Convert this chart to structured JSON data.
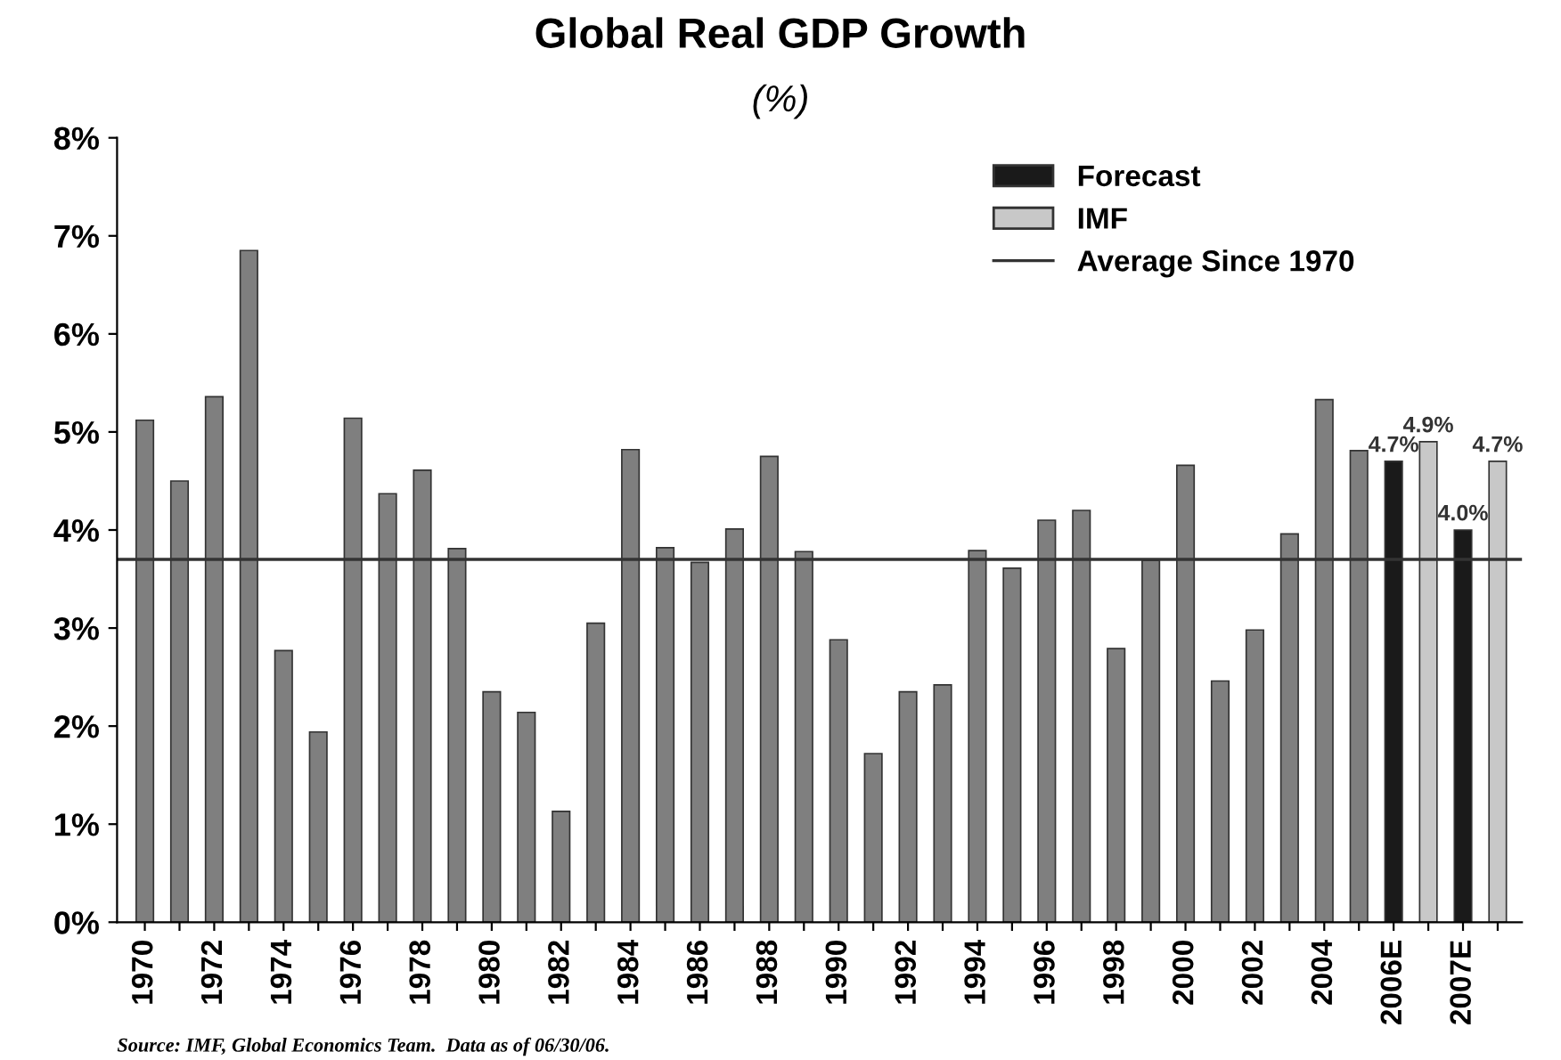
{
  "chart_data": {
    "type": "bar",
    "title": "Global Real GDP Growth",
    "subtitle": "(%)",
    "categories": [
      "1970",
      null,
      "1972",
      null,
      "1974",
      null,
      "1976",
      null,
      "1978",
      null,
      "1980",
      null,
      "1982",
      null,
      "1984",
      null,
      "1986",
      null,
      "1988",
      null,
      "1990",
      null,
      "1992",
      null,
      "1994",
      null,
      "1996",
      null,
      "1998",
      null,
      "2000",
      null,
      "2002",
      null,
      "2004",
      null,
      "2006E",
      null,
      "2007E",
      null
    ],
    "series": [
      {
        "color": "#7f7f7f",
        "values": [
          5.12,
          4.5,
          5.36,
          6.85,
          2.77,
          1.94,
          5.14,
          4.37,
          4.61,
          3.81,
          2.35,
          2.14,
          1.13,
          3.05,
          4.82,
          3.82,
          3.67,
          4.01,
          4.75,
          3.78,
          2.88,
          1.72,
          2.35,
          2.42,
          3.79,
          3.61,
          4.1,
          4.2,
          2.79,
          3.69,
          4.66,
          2.46,
          2.98,
          3.96,
          5.33,
          4.81,
          null,
          null,
          null,
          null
        ]
      },
      {
        "name": "Forecast",
        "color": "#1a1a1a",
        "values": [
          null,
          null,
          null,
          null,
          null,
          null,
          null,
          null,
          null,
          null,
          null,
          null,
          null,
          null,
          null,
          null,
          null,
          null,
          null,
          null,
          null,
          null,
          null,
          null,
          null,
          null,
          null,
          null,
          null,
          null,
          null,
          null,
          null,
          null,
          null,
          null,
          4.7,
          null,
          4.0,
          null
        ],
        "value_labels": [
          null,
          null,
          null,
          null,
          null,
          null,
          null,
          null,
          null,
          null,
          null,
          null,
          null,
          null,
          null,
          null,
          null,
          null,
          null,
          null,
          null,
          null,
          null,
          null,
          null,
          null,
          null,
          null,
          null,
          null,
          null,
          null,
          null,
          null,
          null,
          null,
          "4.7%",
          null,
          "4.0%",
          null
        ]
      },
      {
        "name": "IMF",
        "color": "#c8c8c8",
        "values": [
          null,
          null,
          null,
          null,
          null,
          null,
          null,
          null,
          null,
          null,
          null,
          null,
          null,
          null,
          null,
          null,
          null,
          null,
          null,
          null,
          null,
          null,
          null,
          null,
          null,
          null,
          null,
          null,
          null,
          null,
          null,
          null,
          null,
          null,
          null,
          null,
          null,
          4.9,
          null,
          4.7
        ],
        "value_labels": [
          null,
          null,
          null,
          null,
          null,
          null,
          null,
          null,
          null,
          null,
          null,
          null,
          null,
          null,
          null,
          null,
          null,
          null,
          null,
          null,
          null,
          null,
          null,
          null,
          null,
          null,
          null,
          null,
          null,
          null,
          null,
          null,
          null,
          null,
          null,
          null,
          null,
          "4.9%",
          null,
          "4.7%"
        ]
      }
    ],
    "ylim": [
      0,
      8
    ],
    "yticks": [
      {
        "value": 0,
        "label": "0%"
      },
      {
        "value": 1,
        "label": "1%"
      },
      {
        "value": 2,
        "label": "2%"
      },
      {
        "value": 3,
        "label": "3%"
      },
      {
        "value": 4,
        "label": "4%"
      },
      {
        "value": 5,
        "label": "5%"
      },
      {
        "value": 6,
        "label": "6%"
      },
      {
        "value": 7,
        "label": "7%"
      },
      {
        "value": 8,
        "label": "8%"
      }
    ],
    "ref_lines": [
      {
        "axis": "y",
        "value": 3.7,
        "label": "Average Since 1970",
        "color": "#333333"
      }
    ],
    "grid": false,
    "legend": "top right",
    "annotations": [
      "Source: IMF, Global Economics Team.  Data as of 06/30/06."
    ]
  }
}
